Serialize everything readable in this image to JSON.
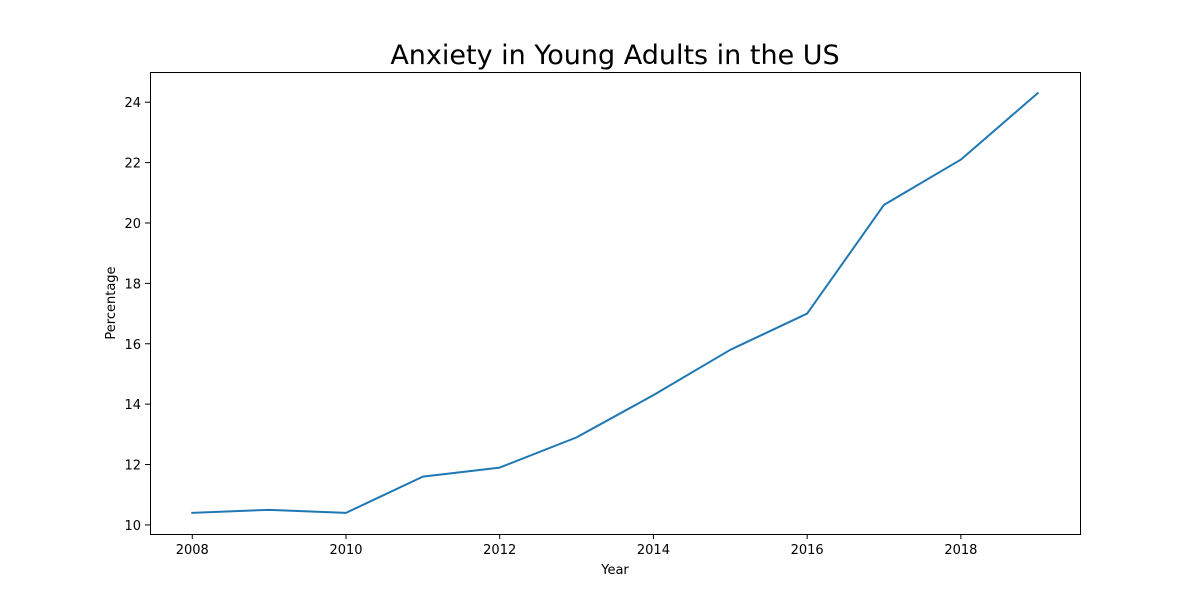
{
  "chart_data": {
    "type": "line",
    "title": "Anxiety in Young Adults in the US",
    "xlabel": "Year",
    "ylabel": "Percentage",
    "x": [
      2008,
      2009,
      2010,
      2011,
      2012,
      2013,
      2014,
      2015,
      2016,
      2017,
      2018,
      2019
    ],
    "series": [
      {
        "values": [
          10.4,
          10.5,
          10.4,
          11.6,
          11.9,
          12.9,
          14.3,
          15.8,
          17.0,
          20.6,
          22.1,
          24.3
        ],
        "color": "#1f77b4"
      }
    ],
    "xlim": [
      2007.45,
      2019.55
    ],
    "ylim": [
      9.7,
      25.0
    ],
    "xticks": [
      2008,
      2010,
      2012,
      2014,
      2016,
      2018
    ],
    "yticks": [
      10,
      12,
      14,
      16,
      18,
      20,
      22,
      24
    ],
    "grid": false,
    "legend": "none"
  }
}
